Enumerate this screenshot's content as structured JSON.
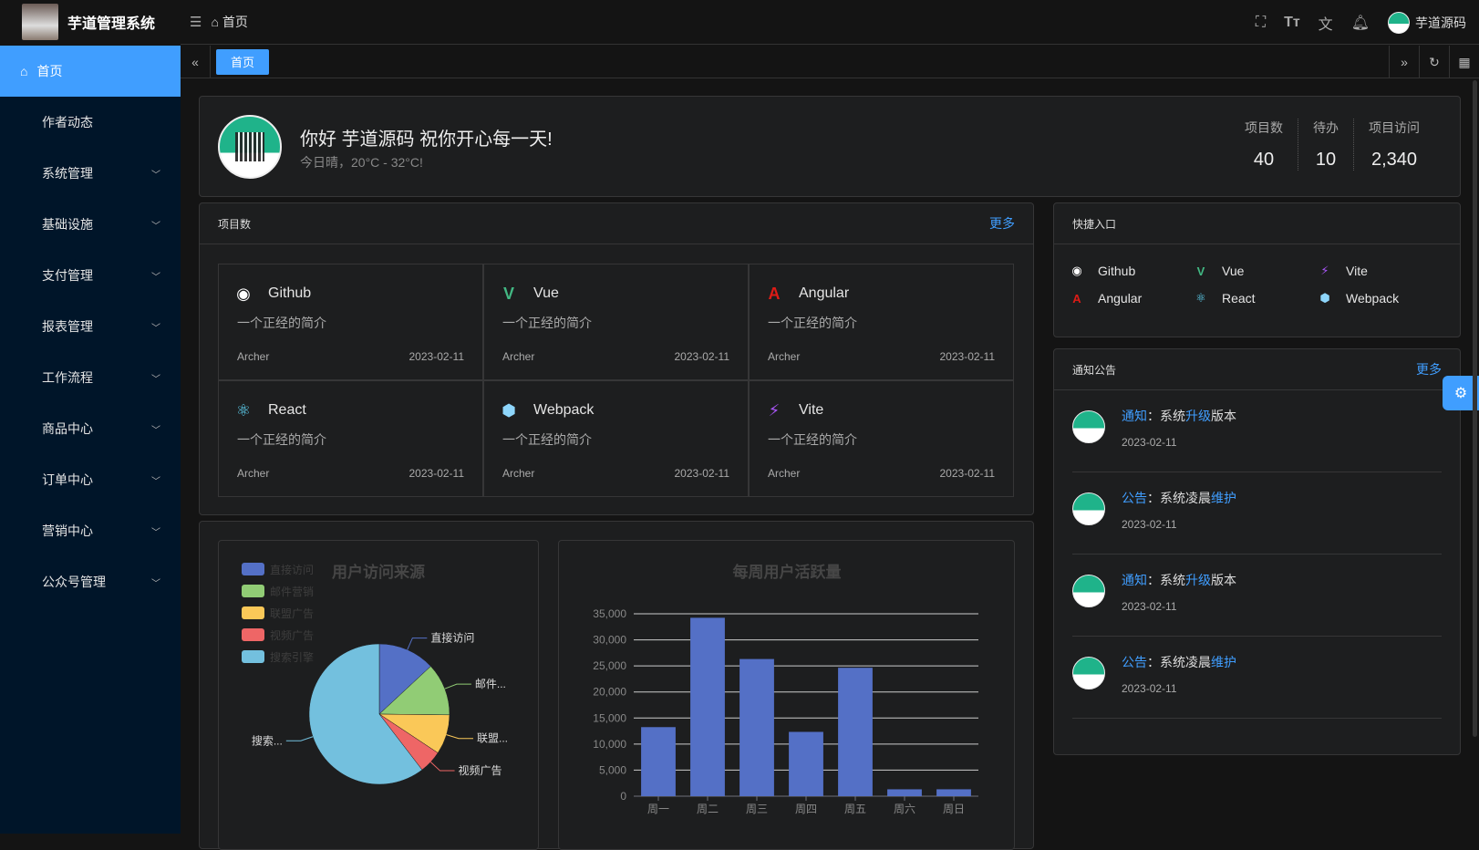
{
  "header": {
    "app_title": "芋道管理系统",
    "breadcrumb": "首页",
    "user_name": "芋道源码"
  },
  "sidebar": {
    "items": [
      {
        "label": "首页",
        "active": true,
        "icon": "home-icon"
      },
      {
        "label": "作者动态"
      },
      {
        "label": "系统管理",
        "expandable": true
      },
      {
        "label": "基础设施",
        "expandable": true
      },
      {
        "label": "支付管理",
        "expandable": true
      },
      {
        "label": "报表管理",
        "expandable": true
      },
      {
        "label": "工作流程",
        "expandable": true
      },
      {
        "label": "商品中心",
        "expandable": true
      },
      {
        "label": "订单中心",
        "expandable": true
      },
      {
        "label": "营销中心",
        "expandable": true
      },
      {
        "label": "公众号管理",
        "expandable": true
      }
    ]
  },
  "tabs": {
    "active": "首页"
  },
  "greeting": {
    "title": "你好 芋道源码 祝你开心每一天!",
    "weather": "今日晴，20°C - 32°C!",
    "stats": [
      {
        "label": "项目数",
        "value": "40"
      },
      {
        "label": "待办",
        "value": "10"
      },
      {
        "label": "项目访问",
        "value": "2,340"
      }
    ]
  },
  "projects": {
    "title": "项目数",
    "more": "更多",
    "items": [
      {
        "name": "Github",
        "icon": "github-icon",
        "color": "#ffffff",
        "desc": "一个正经的简介",
        "author": "Archer",
        "date": "2023-02-11"
      },
      {
        "name": "Vue",
        "icon": "vue-icon",
        "color": "#42b883",
        "desc": "一个正经的简介",
        "author": "Archer",
        "date": "2023-02-11"
      },
      {
        "name": "Angular",
        "icon": "angular-icon",
        "color": "#dd1b16",
        "desc": "一个正经的简介",
        "author": "Archer",
        "date": "2023-02-11"
      },
      {
        "name": "React",
        "icon": "react-icon",
        "color": "#61dafb",
        "desc": "一个正经的简介",
        "author": "Archer",
        "date": "2023-02-11"
      },
      {
        "name": "Webpack",
        "icon": "webpack-icon",
        "color": "#8ed6fb",
        "desc": "一个正经的简介",
        "author": "Archer",
        "date": "2023-02-11"
      },
      {
        "name": "Vite",
        "icon": "vite-icon",
        "color": "#a855f7",
        "desc": "一个正经的简介",
        "author": "Archer",
        "date": "2023-02-11"
      }
    ]
  },
  "quick": {
    "title": "快捷入口",
    "items": [
      {
        "name": "Github",
        "icon": "github-icon",
        "color": "#ffffff"
      },
      {
        "name": "Vue",
        "icon": "vue-icon",
        "color": "#42b883"
      },
      {
        "name": "Vite",
        "icon": "vite-icon",
        "color": "#a855f7"
      },
      {
        "name": "Angular",
        "icon": "angular-icon",
        "color": "#dd1b16"
      },
      {
        "name": "React",
        "icon": "react-icon",
        "color": "#61dafb"
      },
      {
        "name": "Webpack",
        "icon": "webpack-icon",
        "color": "#8ed6fb"
      }
    ]
  },
  "notice": {
    "title": "通知公告",
    "more": "更多",
    "items": [
      {
        "type": "通知",
        "sep": "：",
        "pre": "系统",
        "hl": "升级",
        "post": "版本",
        "date": "2023-02-11"
      },
      {
        "type": "公告",
        "sep": "：",
        "pre": "系统凌晨",
        "hl": "维护",
        "post": "",
        "date": "2023-02-11"
      },
      {
        "type": "通知",
        "sep": "：",
        "pre": "系统",
        "hl": "升级",
        "post": "版本",
        "date": "2023-02-11"
      },
      {
        "type": "公告",
        "sep": "：",
        "pre": "系统凌晨",
        "hl": "维护",
        "post": "",
        "date": "2023-02-11"
      }
    ]
  },
  "chart_data": [
    {
      "type": "pie",
      "title": "用户访问来源",
      "legend_position": "top-left",
      "slices": [
        {
          "name": "直接访问",
          "value": 335,
          "color": "#5470c6",
          "label": "直接访问"
        },
        {
          "name": "邮件营销",
          "value": 310,
          "color": "#91cc75",
          "label": "邮件..."
        },
        {
          "name": "联盟广告",
          "value": 234,
          "color": "#fac858",
          "label": "联盟..."
        },
        {
          "name": "视频广告",
          "value": 135,
          "color": "#ee6666",
          "label": "视频广告"
        },
        {
          "name": "搜索引擎",
          "value": 1548,
          "color": "#73c0de",
          "label": "搜索..."
        }
      ]
    },
    {
      "type": "bar",
      "title": "每周用户活跃量",
      "categories": [
        "周一",
        "周二",
        "周三",
        "周四",
        "周五",
        "周六",
        "周日"
      ],
      "values": [
        13253,
        34235,
        26321,
        12340,
        24643,
        1322,
        1324
      ],
      "ylim": [
        0,
        35000
      ],
      "yticks": [
        "0",
        "5,000",
        "10,000",
        "15,000",
        "20,000",
        "25,000",
        "30,000",
        "35,000"
      ],
      "color": "#5470c6",
      "grid": true
    }
  ]
}
